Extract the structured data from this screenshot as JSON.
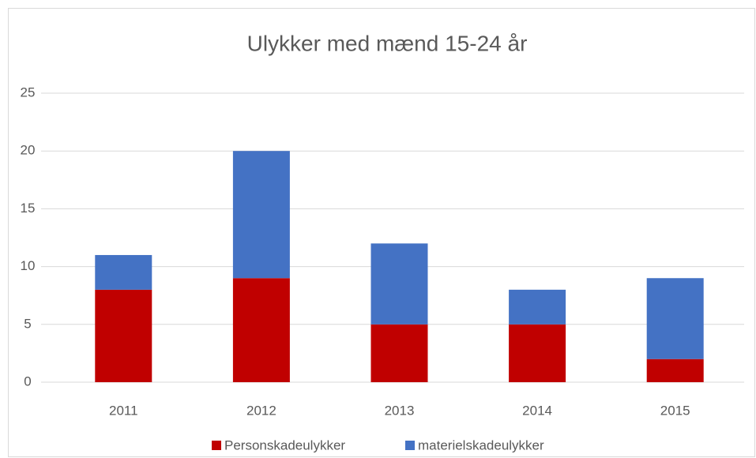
{
  "chart_data": {
    "type": "stacked_bar",
    "title": "Ulykker med mænd 15-24 år",
    "categories": [
      "2011",
      "2012",
      "2013",
      "2014",
      "2015"
    ],
    "series": [
      {
        "name": "Personskadeulykker",
        "color": "#c00000",
        "values": [
          8,
          9,
          5,
          5,
          2
        ]
      },
      {
        "name": "materielskadeulykker",
        "color": "#4472c4",
        "values": [
          3,
          11,
          7,
          3,
          7
        ]
      }
    ],
    "ylim": [
      0,
      25
    ],
    "yticks": [
      0,
      5,
      10,
      15,
      20,
      25
    ],
    "grid": true,
    "legend": "bottom"
  }
}
